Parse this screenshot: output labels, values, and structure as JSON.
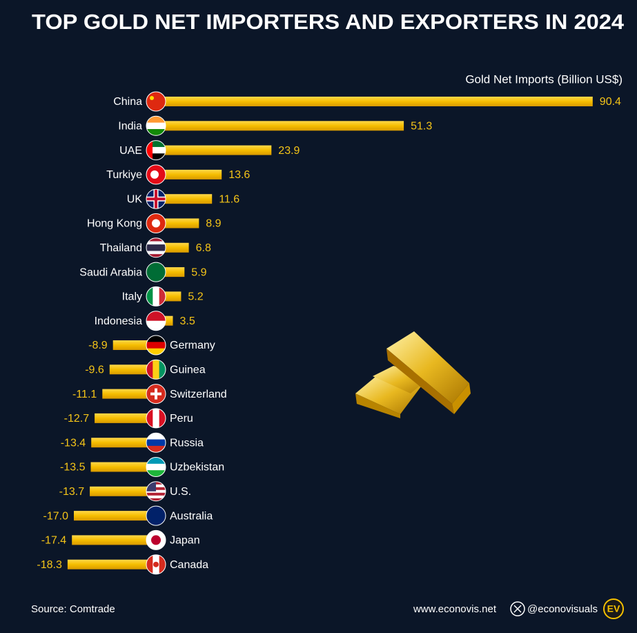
{
  "chart_data": {
    "type": "bar",
    "orientation": "horizontal",
    "title": "TOP GOLD NET IMPORTERS AND EXPORTERS IN 2024",
    "value_axis_label": "Gold Net Imports (Billion US$)",
    "categories": [
      "China",
      "India",
      "UAE",
      "Turkiye",
      "UK",
      "Hong Kong",
      "Thailand",
      "Saudi Arabia",
      "Italy",
      "Indonesia",
      "Germany",
      "Guinea",
      "Switzerland",
      "Peru",
      "Russia",
      "Uzbekistan",
      "U.S.",
      "Australia",
      "Japan",
      "Canada"
    ],
    "values": [
      90.4,
      51.3,
      23.9,
      13.6,
      11.6,
      8.9,
      6.8,
      5.9,
      5.2,
      3.5,
      -8.9,
      -9.6,
      -11.1,
      -12.7,
      -13.4,
      -13.5,
      -13.7,
      -17.0,
      -17.4,
      -18.3
    ],
    "value_labels": [
      "90.4",
      "51.3",
      "23.9",
      "13.6",
      "11.6",
      "8.9",
      "6.8",
      "5.9",
      "5.2",
      "3.5",
      "-8.9",
      "-9.6",
      "-11.1",
      "-12.7",
      "-13.4",
      "-13.5",
      "-13.7",
      "-17.0",
      "-17.4",
      "-18.3"
    ],
    "color": "#f5c000",
    "source": "Source: Comtrade"
  },
  "footer": {
    "website": "www.econovis.net",
    "handle": "@econovisuals",
    "logo": "EV"
  }
}
